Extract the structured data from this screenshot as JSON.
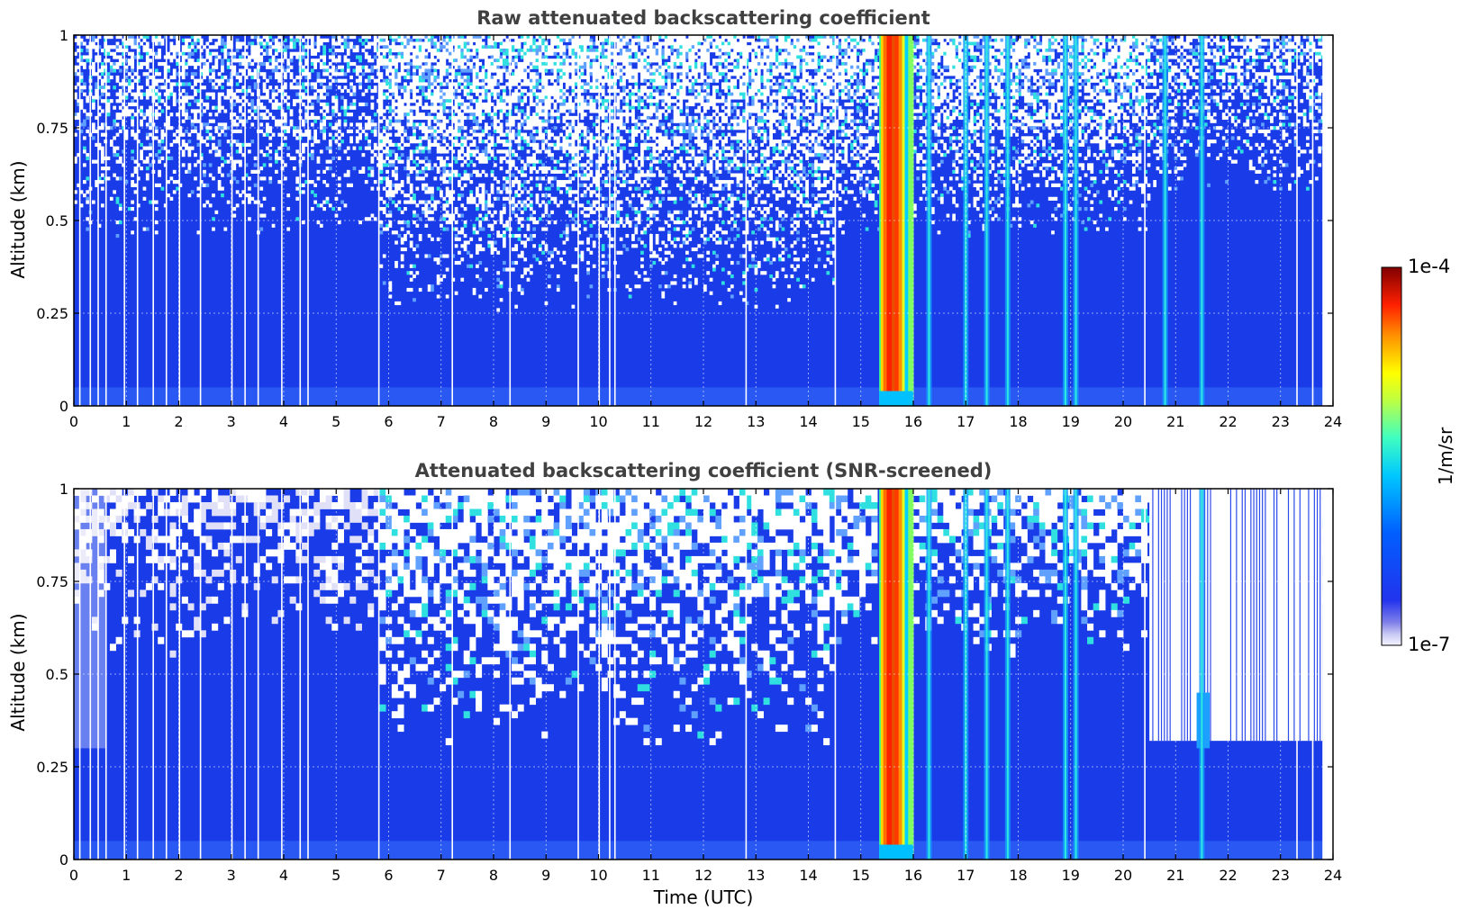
{
  "chart_data": [
    {
      "type": "heatmap",
      "title": "Raw attenuated backscattering coefficient",
      "xlabel": "",
      "ylabel": "Altitude (km)",
      "xlim": [
        0,
        24
      ],
      "ylim": [
        0,
        1
      ],
      "xticks": [
        "0",
        "1",
        "2",
        "3",
        "4",
        "5",
        "6",
        "7",
        "8",
        "9",
        "10",
        "11",
        "12",
        "13",
        "14",
        "15",
        "16",
        "17",
        "18",
        "19",
        "20",
        "21",
        "22",
        "23",
        "24"
      ],
      "yticks": [
        "0",
        "0.25",
        "0.5",
        "0.75",
        "1"
      ],
      "grid": true,
      "variant": "raw",
      "features": [
        {
          "kind": "dense_cloud",
          "x_start": 15.35,
          "x_end": 16.0
        },
        {
          "kind": "thin_streak",
          "x": 16.3
        },
        {
          "kind": "thin_streak",
          "x": 17.0
        },
        {
          "kind": "thin_streak",
          "x": 17.4
        },
        {
          "kind": "thin_streak",
          "x": 17.8
        },
        {
          "kind": "thin_streak",
          "x": 18.9
        },
        {
          "kind": "thin_streak",
          "x": 19.1
        },
        {
          "kind": "thin_streak",
          "x": 20.8
        },
        {
          "kind": "thin_streak",
          "x": 21.5
        }
      ]
    },
    {
      "type": "heatmap",
      "title": "Attenuated backscattering coefficient (SNR-screened)",
      "xlabel": "Time (UTC)",
      "ylabel": "Altitude (km)",
      "xlim": [
        0,
        24
      ],
      "ylim": [
        0,
        1
      ],
      "xticks": [
        "0",
        "1",
        "2",
        "3",
        "4",
        "5",
        "6",
        "7",
        "8",
        "9",
        "10",
        "11",
        "12",
        "13",
        "14",
        "15",
        "16",
        "17",
        "18",
        "19",
        "20",
        "21",
        "22",
        "23",
        "24"
      ],
      "yticks": [
        "0",
        "0.25",
        "0.5",
        "0.75",
        "1"
      ],
      "grid": true,
      "variant": "screened",
      "features": [
        {
          "kind": "dense_cloud",
          "x_start": 15.35,
          "x_end": 16.0
        },
        {
          "kind": "thin_streak",
          "x": 16.3
        },
        {
          "kind": "thin_streak",
          "x": 17.0
        },
        {
          "kind": "thin_streak",
          "x": 17.4
        },
        {
          "kind": "thin_streak",
          "x": 17.8
        },
        {
          "kind": "thin_streak",
          "x": 18.9
        },
        {
          "kind": "thin_streak",
          "x": 19.1
        },
        {
          "kind": "thin_streak",
          "x": 21.5
        }
      ]
    }
  ],
  "colorbar": {
    "label": "1/m/sr",
    "max_label": "1e-4",
    "min_label": "1e-7",
    "scale": "log",
    "colormap": "jet",
    "range": [
      1e-07,
      0.0001
    ]
  },
  "colors": {
    "background_noise": "#1f3fe6",
    "cloud_core": "#e03000",
    "missing": "#ffffff",
    "title": "#404040"
  }
}
